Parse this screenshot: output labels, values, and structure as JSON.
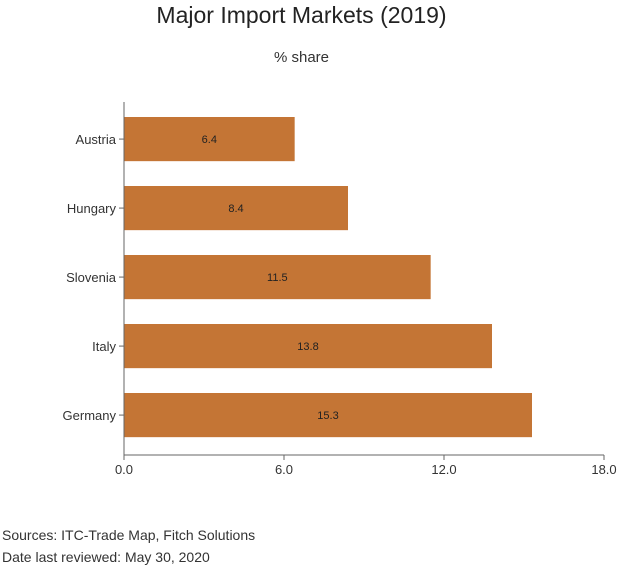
{
  "chart_data": {
    "type": "bar",
    "orientation": "horizontal",
    "title": "Major Import Markets (2019)",
    "subtitle": "% share",
    "categories": [
      "Austria",
      "Hungary",
      "Slovenia",
      "Italy",
      "Germany"
    ],
    "values": [
      6.4,
      8.4,
      11.5,
      13.8,
      15.3
    ],
    "value_labels": [
      "6.4",
      "8.4",
      "11.5",
      "13.8",
      "15.3"
    ],
    "xlim": [
      0,
      18
    ],
    "xticks": [
      0,
      6,
      12,
      18
    ],
    "xtick_labels": [
      "0.0",
      "6.0",
      "12.0",
      "18.0"
    ],
    "grid": false,
    "bar_color": "#c47535"
  },
  "footer": {
    "sources": "Sources: ITC-Trade Map, Fitch Solutions",
    "reviewed": "Date last reviewed: May 30, 2020"
  }
}
